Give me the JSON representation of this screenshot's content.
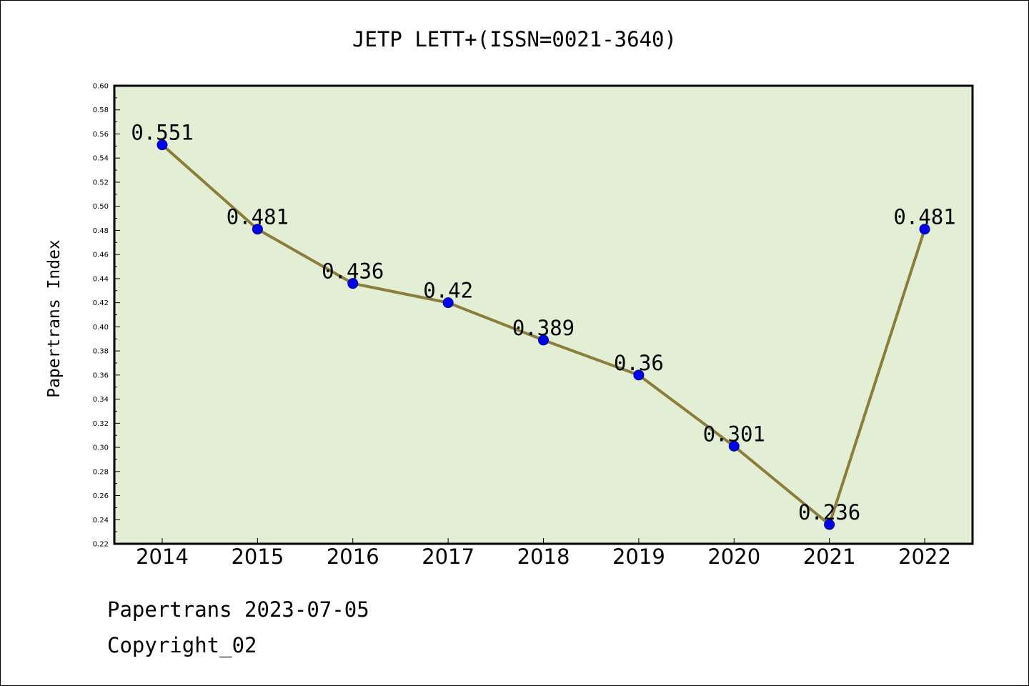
{
  "chart_data": {
    "type": "line",
    "title": "JETP LETT+(ISSN=0021-3640)",
    "xlabel": "",
    "ylabel": "Papertrans Index",
    "categories": [
      "2014",
      "2015",
      "2016",
      "2017",
      "2018",
      "2019",
      "2020",
      "2021",
      "2022"
    ],
    "series": [
      {
        "values": [
          0.551,
          0.481,
          0.436,
          0.42,
          0.389,
          0.36,
          0.301,
          0.236,
          0.481
        ],
        "data_labels": [
          "0.551",
          "0.481",
          "0.436",
          "0.42",
          "0.389",
          "0.36",
          "0.301",
          "0.236",
          "0.481"
        ]
      }
    ],
    "ylim": [
      0.22,
      0.6
    ],
    "yticks": [
      "0.22",
      "0.24",
      "0.26",
      "0.28",
      "0.30",
      "0.32",
      "0.34",
      "0.36",
      "0.38",
      "0.40",
      "0.42",
      "0.44",
      "0.46",
      "0.48",
      "0.50",
      "0.52",
      "0.54",
      "0.56",
      "0.58",
      "0.60"
    ],
    "grid": false,
    "legend": "none",
    "colors": {
      "plot_background": "#e2efd5",
      "line": "#8b7d3a",
      "marker_fill": "#0000ee",
      "marker_stroke": "#00008b"
    }
  },
  "footer": {
    "date_line": "Papertrans 2023-07-05",
    "copyright_line": "Copyright_02"
  }
}
